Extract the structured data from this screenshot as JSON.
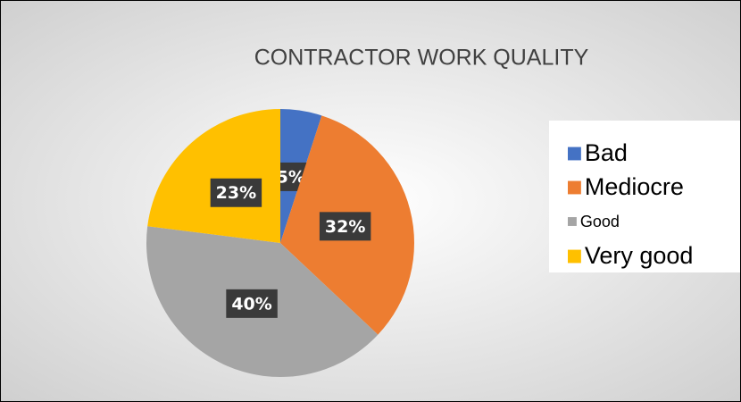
{
  "chart_data": {
    "type": "pie",
    "title": "CONTRACTOR WORK QUALITY",
    "categories": [
      "Bad",
      "Mediocre",
      "Good",
      "Very good"
    ],
    "values": [
      5,
      32,
      40,
      23
    ],
    "value_labels": [
      "5%",
      "32%",
      "40%",
      "23%"
    ],
    "colors": [
      "#4472c4",
      "#ed7d31",
      "#a5a5a5",
      "#ffc000"
    ],
    "legend": "right"
  }
}
